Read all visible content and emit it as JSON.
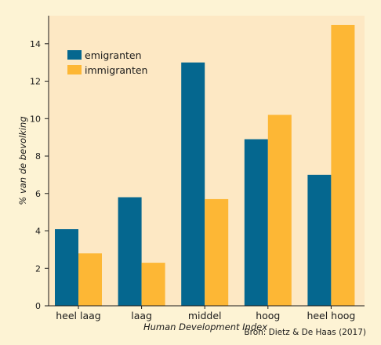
{
  "chart_data": {
    "type": "bar",
    "categories": [
      "heel laag",
      "laag",
      "middel",
      "hoog",
      "heel hoog"
    ],
    "series": [
      {
        "name": "emigranten",
        "color": "#05678f",
        "values": [
          4.1,
          5.8,
          13.0,
          8.9,
          7.0
        ]
      },
      {
        "name": "immigranten",
        "color": "#fdb735",
        "values": [
          2.8,
          2.3,
          5.7,
          10.2,
          15.0
        ]
      }
    ],
    "xlabel": "Human Development Index",
    "ylabel": "% van de bevolking",
    "ylim": [
      0,
      15.5
    ],
    "yticks": [
      0,
      2,
      4,
      6,
      8,
      10,
      12,
      14
    ],
    "grid": false,
    "legend_position": "top-left",
    "source": "Bron: Dietz & De Haas (2017)",
    "plot_background": "#fde8c4",
    "page_background": "#fdf3d4"
  }
}
